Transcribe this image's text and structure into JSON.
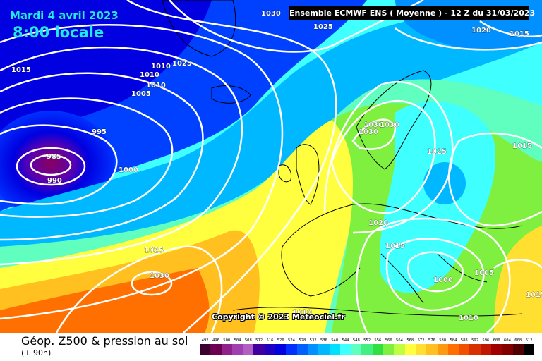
{
  "header": {
    "date": "Mardi 4 avril 2023",
    "local_time": "8:00 locale",
    "ensemble": "Ensemble ECMWF ENS  ( Moyenne )  - 12 Z du 31/03/2023"
  },
  "map": {
    "copyright": "Copyright © 2023 Meteociel.fr",
    "isobar_labels": [
      "1030",
      "1025",
      "1020",
      "1015",
      "1015",
      "1010",
      "1010",
      "1025",
      "1010",
      "1005",
      "995",
      "985",
      "990",
      "1000",
      "1030",
      "1030",
      "1030",
      "1025",
      "1015",
      "1020",
      "1015",
      "1005",
      "1000",
      "1010",
      "1010",
      "1015",
      "1025",
      "1030"
    ]
  },
  "footer": {
    "title": "Géop. Z500 & pression au sol",
    "subtitle": "(+ 90h)"
  },
  "scale": {
    "values": [
      "492",
      "496",
      "500",
      "504",
      "508",
      "512",
      "516",
      "520",
      "524",
      "528",
      "532",
      "536",
      "540",
      "544",
      "548",
      "552",
      "556",
      "560",
      "564",
      "568",
      "572",
      "576",
      "580",
      "584",
      "588",
      "592",
      "596",
      "600",
      "604",
      "608",
      "612"
    ],
    "colors": [
      "#3c0030",
      "#6b0050",
      "#90208a",
      "#a040b0",
      "#b060c0",
      "#4000a0",
      "#2000c0",
      "#0000e0",
      "#0030ff",
      "#0060ff",
      "#0090ff",
      "#00b8ff",
      "#00e0ff",
      "#40ffff",
      "#60ffc0",
      "#40f080",
      "#30e040",
      "#80f040",
      "#c0ff40",
      "#ffff40",
      "#ffe030",
      "#ffc020",
      "#ff9a10",
      "#ff7000",
      "#f05000",
      "#d83000",
      "#c01800",
      "#a00000",
      "#800000",
      "#500000",
      "#000000"
    ]
  }
}
